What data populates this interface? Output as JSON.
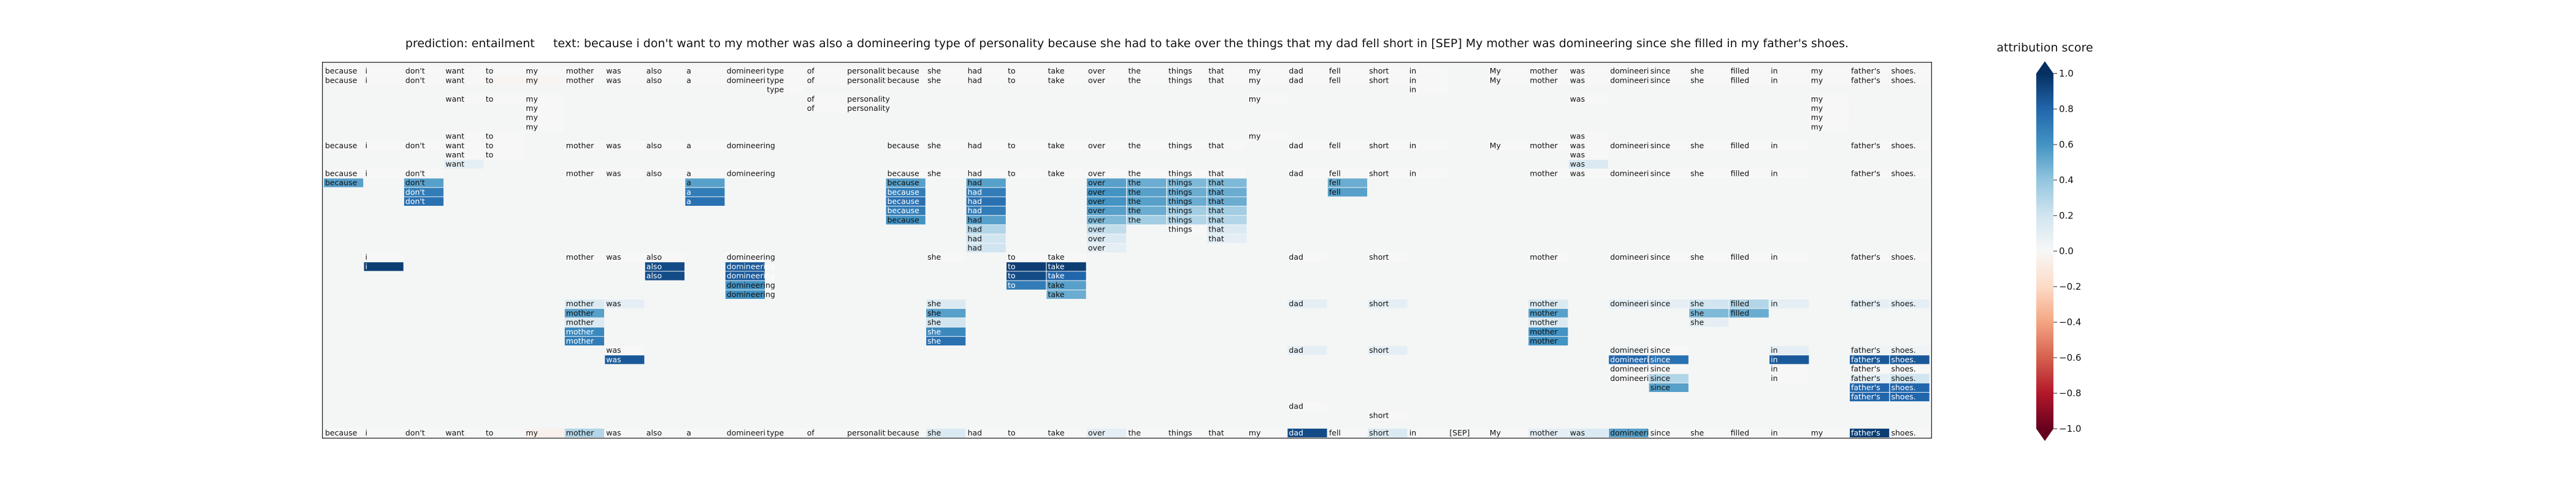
{
  "title": {
    "prediction_label": "prediction:",
    "prediction": "entailment",
    "text_label": "text:",
    "text": "because i don't want to my mother was also a domineering type of personality because she had to take over the things that my dad fell short in [SEP] My mother was domineering since she filled in my father's shoes."
  },
  "colorbar": {
    "label": "attribution score",
    "ticks": [
      "1.0",
      "0.8",
      "0.6",
      "0.4",
      "0.2",
      "0.0",
      "−0.2",
      "−0.4",
      "−0.6",
      "−0.8",
      "−1.0"
    ],
    "tick_values": [
      1.0,
      0.8,
      0.6,
      0.4,
      0.2,
      0.0,
      -0.2,
      -0.4,
      -0.6,
      -0.8,
      -1.0
    ],
    "min": -1.0,
    "max": 1.0,
    "colors": [
      "#67001f",
      "#b2182b",
      "#d6604d",
      "#f4a582",
      "#fddbc7",
      "#f7f7f7",
      "#d1e5f0",
      "#92c5de",
      "#4393c3",
      "#2166ac",
      "#053061"
    ]
  },
  "chart_data": {
    "type": "heatmap",
    "title": "prediction: entailment     text: because i don't want to my mother was also a domineering type of personality because she had to take over the things that my dad fell short in [SEP] My mother was domineering since she filled in my father's shoes.",
    "colorbar_label": "attribution score",
    "value_range": [
      -1.0,
      1.0
    ],
    "tokens": [
      "because",
      "i",
      "don't",
      "want",
      "to",
      "my",
      "mother",
      "was",
      "also",
      "a",
      "domineering",
      "type",
      "of",
      "personality",
      "because",
      "she",
      "had",
      "to",
      "take",
      "over",
      "the",
      "things",
      "that",
      "my",
      "dad",
      "fell",
      "short",
      "in",
      "[SEP]",
      "My",
      "mother",
      "was",
      "domineering",
      "since",
      "she",
      "filled",
      "in",
      "my",
      "father's",
      "shoes."
    ],
    "rows_note": "each row: list of [token_index, attribution_value]",
    "rows": [
      [
        [
          0,
          0
        ],
        [
          1,
          0
        ],
        [
          2,
          0
        ],
        [
          3,
          0
        ],
        [
          4,
          0
        ],
        [
          5,
          0
        ],
        [
          6,
          0
        ],
        [
          7,
          0
        ],
        [
          8,
          0
        ],
        [
          9,
          0
        ],
        [
          10,
          0
        ],
        [
          11,
          0
        ],
        [
          12,
          0
        ],
        [
          13,
          0
        ],
        [
          14,
          0
        ],
        [
          15,
          0
        ],
        [
          16,
          0
        ],
        [
          17,
          0
        ],
        [
          18,
          0
        ],
        [
          19,
          0
        ],
        [
          20,
          0
        ],
        [
          21,
          0
        ],
        [
          22,
          0
        ],
        [
          23,
          0
        ],
        [
          24,
          0
        ],
        [
          25,
          0
        ],
        [
          26,
          0
        ],
        [
          27,
          0
        ],
        [
          29,
          0
        ],
        [
          30,
          0
        ],
        [
          31,
          0
        ],
        [
          32,
          0
        ],
        [
          33,
          0
        ],
        [
          34,
          0
        ],
        [
          35,
          0
        ],
        [
          36,
          0
        ],
        [
          37,
          0
        ],
        [
          38,
          0
        ],
        [
          39,
          0
        ]
      ],
      [
        [
          0,
          0
        ],
        [
          1,
          0
        ],
        [
          2,
          0
        ],
        [
          3,
          0
        ],
        [
          4,
          -0.02
        ],
        [
          5,
          -0.02
        ],
        [
          6,
          0
        ],
        [
          7,
          0
        ],
        [
          8,
          0
        ],
        [
          9,
          0
        ],
        [
          10,
          0
        ],
        [
          11,
          0
        ],
        [
          12,
          0
        ],
        [
          13,
          0
        ],
        [
          14,
          0
        ],
        [
          15,
          0
        ],
        [
          16,
          0
        ],
        [
          17,
          0
        ],
        [
          18,
          0
        ],
        [
          19,
          0
        ],
        [
          20,
          0
        ],
        [
          21,
          0
        ],
        [
          22,
          0
        ],
        [
          23,
          0
        ],
        [
          24,
          0
        ],
        [
          25,
          0
        ],
        [
          26,
          0
        ],
        [
          27,
          0
        ],
        [
          29,
          0
        ],
        [
          30,
          0
        ],
        [
          31,
          0
        ],
        [
          32,
          0
        ],
        [
          33,
          0
        ],
        [
          34,
          0
        ],
        [
          35,
          0
        ],
        [
          36,
          0
        ],
        [
          37,
          0
        ],
        [
          38,
          0
        ],
        [
          39,
          0
        ]
      ],
      [
        [
          11,
          0
        ],
        [
          27,
          0
        ]
      ],
      [
        [
          3,
          0
        ],
        [
          4,
          0
        ],
        [
          5,
          0
        ],
        [
          12,
          0
        ],
        [
          13,
          0
        ],
        [
          23,
          0
        ],
        [
          31,
          0
        ],
        [
          37,
          0
        ]
      ],
      [
        [
          5,
          0
        ],
        [
          12,
          0
        ],
        [
          13,
          0
        ],
        [
          37,
          0
        ]
      ],
      [
        [
          5,
          0
        ],
        [
          37,
          0
        ]
      ],
      [
        [
          5,
          0
        ],
        [
          37,
          0
        ]
      ],
      [
        [
          3,
          0
        ],
        [
          4,
          0
        ],
        [
          23,
          0
        ],
        [
          31,
          0
        ]
      ],
      [
        [
          0,
          0
        ],
        [
          1,
          0
        ],
        [
          2,
          0
        ],
        [
          3,
          0
        ],
        [
          4,
          0
        ],
        [
          6,
          0
        ],
        [
          7,
          0
        ],
        [
          8,
          0
        ],
        [
          9,
          0
        ],
        [
          10,
          0
        ],
        [
          14,
          0
        ],
        [
          15,
          0
        ],
        [
          16,
          0
        ],
        [
          17,
          0
        ],
        [
          18,
          0
        ],
        [
          19,
          0
        ],
        [
          20,
          0
        ],
        [
          21,
          0
        ],
        [
          22,
          0
        ],
        [
          24,
          0
        ],
        [
          25,
          0
        ],
        [
          26,
          0
        ],
        [
          27,
          0
        ],
        [
          29,
          0
        ],
        [
          30,
          0
        ],
        [
          31,
          0
        ],
        [
          32,
          0
        ],
        [
          33,
          0
        ],
        [
          34,
          0
        ],
        [
          35,
          0
        ],
        [
          36,
          0
        ],
        [
          38,
          0
        ],
        [
          39,
          0
        ]
      ],
      [
        [
          3,
          0
        ],
        [
          4,
          0
        ],
        [
          31,
          0
        ]
      ],
      [
        [
          3,
          0.1
        ],
        [
          31,
          0.15
        ]
      ],
      [
        [
          0,
          0
        ],
        [
          1,
          0
        ],
        [
          2,
          0
        ],
        [
          6,
          0
        ],
        [
          7,
          0
        ],
        [
          8,
          0
        ],
        [
          9,
          0
        ],
        [
          10,
          0
        ],
        [
          14,
          0
        ],
        [
          15,
          0
        ],
        [
          16,
          0
        ],
        [
          17,
          0
        ],
        [
          18,
          0
        ],
        [
          19,
          0
        ],
        [
          20,
          0
        ],
        [
          21,
          0
        ],
        [
          22,
          0
        ],
        [
          24,
          0
        ],
        [
          25,
          0
        ],
        [
          26,
          0
        ],
        [
          27,
          0
        ],
        [
          30,
          0
        ],
        [
          31,
          0
        ],
        [
          32,
          0
        ],
        [
          33,
          0
        ],
        [
          34,
          0
        ],
        [
          35,
          0
        ],
        [
          36,
          0
        ],
        [
          38,
          0
        ],
        [
          39,
          0
        ]
      ],
      [
        [
          0,
          0.55
        ],
        [
          2,
          0.55
        ],
        [
          9,
          0.55
        ],
        [
          14,
          0.55
        ],
        [
          16,
          0.55
        ],
        [
          19,
          0.55
        ],
        [
          20,
          0.5
        ],
        [
          21,
          0.45
        ],
        [
          22,
          0.45
        ],
        [
          25,
          0.5
        ]
      ],
      [
        [
          2,
          0.7
        ],
        [
          9,
          0.7
        ],
        [
          14,
          0.7
        ],
        [
          16,
          0.7
        ],
        [
          19,
          0.6
        ],
        [
          20,
          0.55
        ],
        [
          21,
          0.5
        ],
        [
          22,
          0.5
        ],
        [
          25,
          0.55
        ]
      ],
      [
        [
          2,
          0.75
        ],
        [
          9,
          0.75
        ],
        [
          14,
          0.75
        ],
        [
          16,
          0.75
        ],
        [
          19,
          0.6
        ],
        [
          20,
          0.55
        ],
        [
          21,
          0.5
        ],
        [
          22,
          0.5
        ]
      ],
      [
        [
          14,
          0.7
        ],
        [
          16,
          0.7
        ],
        [
          19,
          0.55
        ],
        [
          20,
          0.5
        ],
        [
          21,
          0.35
        ],
        [
          22,
          0.35
        ]
      ],
      [
        [
          14,
          0.6
        ],
        [
          16,
          0.55
        ],
        [
          19,
          0.45
        ],
        [
          20,
          0.35
        ],
        [
          21,
          0.3
        ],
        [
          22,
          0.3
        ]
      ],
      [
        [
          16,
          0.3
        ],
        [
          19,
          0.25
        ],
        [
          21,
          0
        ],
        [
          22,
          0.15
        ]
      ],
      [
        [
          16,
          0.2
        ],
        [
          19,
          0.15
        ],
        [
          22,
          0.1
        ]
      ],
      [
        [
          16,
          0.2
        ],
        [
          19,
          0.1
        ]
      ],
      [
        [
          1,
          0
        ],
        [
          6,
          0
        ],
        [
          7,
          0
        ],
        [
          8,
          0
        ],
        [
          10,
          0
        ],
        [
          15,
          0
        ],
        [
          17,
          0
        ],
        [
          18,
          0
        ],
        [
          24,
          0
        ],
        [
          26,
          0
        ],
        [
          30,
          0
        ],
        [
          32,
          0
        ],
        [
          33,
          0
        ],
        [
          34,
          0
        ],
        [
          35,
          0
        ],
        [
          36,
          0
        ],
        [
          38,
          0
        ],
        [
          39,
          0
        ]
      ],
      [
        [
          1,
          0.95
        ],
        [
          8,
          0.9
        ],
        [
          10,
          0.85
        ],
        [
          17,
          0.95
        ],
        [
          18,
          0.95
        ]
      ],
      [
        [
          8,
          0.9
        ],
        [
          10,
          0.85
        ],
        [
          17,
          0.9
        ],
        [
          18,
          0.8
        ]
      ],
      [
        [
          10,
          0.6
        ],
        [
          17,
          0.7
        ],
        [
          18,
          0.55
        ]
      ],
      [
        [
          10,
          0.6
        ],
        [
          18,
          0.5
        ]
      ],
      [
        [
          6,
          0.15
        ],
        [
          7,
          0.1
        ],
        [
          15,
          0.15
        ],
        [
          24,
          0.1
        ],
        [
          26,
          0.1
        ],
        [
          30,
          0.15
        ],
        [
          32,
          0.1
        ],
        [
          33,
          0.1
        ],
        [
          34,
          0.2
        ],
        [
          35,
          0.3
        ],
        [
          36,
          0.1
        ],
        [
          38,
          0.1
        ],
        [
          39,
          0.1
        ]
      ],
      [
        [
          6,
          0.55
        ],
        [
          15,
          0.55
        ],
        [
          30,
          0.55
        ],
        [
          34,
          0.45
        ],
        [
          35,
          0.5
        ]
      ],
      [
        [
          6,
          0.15
        ],
        [
          15,
          0.2
        ],
        [
          30,
          0.15
        ],
        [
          34,
          0.1
        ]
      ],
      [
        [
          6,
          0.65
        ],
        [
          15,
          0.65
        ],
        [
          30,
          0.6
        ]
      ],
      [
        [
          6,
          0.7
        ],
        [
          15,
          0.75
        ],
        [
          30,
          0.6
        ]
      ],
      [
        [
          7,
          0
        ],
        [
          24,
          0.1
        ],
        [
          26,
          0.1
        ],
        [
          32,
          0.05
        ],
        [
          33,
          0
        ],
        [
          36,
          0.1
        ],
        [
          38,
          0.05
        ],
        [
          39,
          0.05
        ]
      ],
      [
        [
          7,
          0.85
        ],
        [
          32,
          0.8
        ],
        [
          33,
          0.75
        ],
        [
          36,
          0.85
        ],
        [
          38,
          0.85
        ],
        [
          39,
          0.85
        ]
      ],
      [
        [
          32,
          0
        ],
        [
          33,
          0
        ],
        [
          36,
          0
        ],
        [
          38,
          0
        ],
        [
          39,
          0
        ]
      ],
      [
        [
          32,
          0
        ],
        [
          33,
          0.3
        ],
        [
          36,
          0
        ],
        [
          38,
          0.1
        ],
        [
          39,
          0.2
        ]
      ],
      [
        [
          33,
          0.55
        ],
        [
          38,
          0.8
        ],
        [
          39,
          0.8
        ]
      ],
      [
        [
          38,
          0.8
        ],
        [
          39,
          0.8
        ]
      ],
      [
        [
          24,
          0
        ]
      ],
      [
        [
          26,
          0
        ]
      ],
      [
        [
          0,
          0
        ],
        [
          1,
          0
        ],
        [
          2,
          0
        ],
        [
          3,
          0
        ],
        [
          4,
          0
        ],
        [
          5,
          -0.05
        ],
        [
          6,
          0.3
        ],
        [
          7,
          0
        ],
        [
          8,
          0
        ],
        [
          9,
          0
        ],
        [
          10,
          0
        ],
        [
          11,
          0
        ],
        [
          12,
          0
        ],
        [
          13,
          0
        ],
        [
          14,
          0
        ],
        [
          15,
          0.15
        ],
        [
          16,
          0
        ],
        [
          17,
          0
        ],
        [
          18,
          0
        ],
        [
          19,
          0.1
        ],
        [
          20,
          0
        ],
        [
          21,
          0
        ],
        [
          22,
          0
        ],
        [
          23,
          0
        ],
        [
          24,
          0.9
        ],
        [
          25,
          0
        ],
        [
          26,
          0.15
        ],
        [
          27,
          0
        ],
        [
          28,
          0
        ],
        [
          29,
          0
        ],
        [
          30,
          0.1
        ],
        [
          31,
          0.15
        ],
        [
          32,
          0.55
        ],
        [
          33,
          0
        ],
        [
          34,
          0
        ],
        [
          35,
          0
        ],
        [
          36,
          0
        ],
        [
          37,
          0
        ],
        [
          38,
          0.95
        ],
        [
          39,
          0
        ]
      ]
    ]
  }
}
